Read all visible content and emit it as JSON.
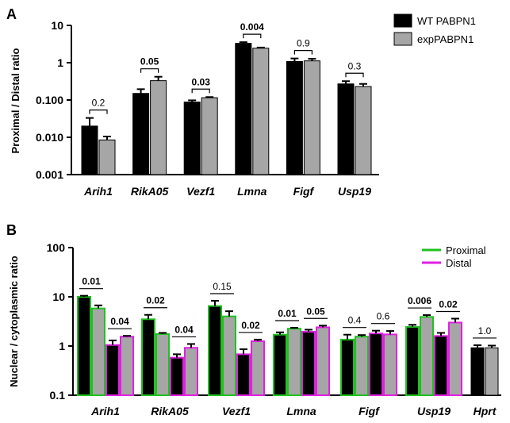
{
  "colors": {
    "wt": "#000000",
    "exp": "#a6a6a6",
    "proximal_outline": "#1fc21f",
    "distal_outline": "#e020e0"
  },
  "chart_data": [
    {
      "panel": "A",
      "type": "bar",
      "scale": "log",
      "ylabel": "Proximal / Distal  ratio",
      "ylim": [
        0.001,
        10
      ],
      "yticks": [
        "0.001",
        "0.010",
        "0.100",
        "1",
        "10"
      ],
      "legend_position": "top-right",
      "categories": [
        "Arih1",
        "RikA05",
        "Vezf1",
        "Lmna",
        "Figf",
        "Usp19"
      ],
      "series": [
        {
          "name": "WT PABPN1",
          "values": [
            0.02,
            0.15,
            0.088,
            3.3,
            1.08,
            0.27
          ],
          "errors": [
            0.013,
            0.045,
            0.01,
            0.25,
            0.22,
            0.05
          ]
        },
        {
          "name": "expPABPN1",
          "values": [
            0.0085,
            0.33,
            0.115,
            2.45,
            1.12,
            0.23
          ],
          "errors": [
            0.002,
            0.09,
            0.005,
            0.1,
            0.15,
            0.04
          ]
        }
      ],
      "pvalues": [
        {
          "label": "0.2",
          "bold": false
        },
        {
          "label": "0.05",
          "bold": true
        },
        {
          "label": "0.03",
          "bold": true
        },
        {
          "label": "0.004",
          "bold": true
        },
        {
          "label": "0.9",
          "bold": false
        },
        {
          "label": "0.3",
          "bold": false
        }
      ]
    },
    {
      "panel": "B",
      "type": "bar",
      "scale": "log",
      "ylabel": "Nuclear / cytoplasmic ratio",
      "ylim": [
        0.1,
        100
      ],
      "yticks": [
        "0.1",
        "1",
        "10",
        "100"
      ],
      "legend_position": "top-right",
      "legend": [
        "Proximal",
        "Distal"
      ],
      "categories": [
        "Arih1",
        "RikA05",
        "Vezf1",
        "Lmna",
        "Figf",
        "Usp19",
        "Hprt"
      ],
      "groups": [
        {
          "category": "Arih1",
          "bars": [
            {
              "fill": "wt",
              "outline": "proximal",
              "value": 10.0,
              "err": 0.5
            },
            {
              "fill": "exp",
              "outline": "proximal",
              "value": 5.8,
              "err": 0.9
            },
            {
              "fill": "wt",
              "outline": "distal",
              "value": 1.05,
              "err": 0.25
            },
            {
              "fill": "exp",
              "outline": "distal",
              "value": 1.55,
              "err": 0.06
            }
          ],
          "pvalues": [
            {
              "label": "0.01",
              "bold": true
            },
            {
              "label": "0.04",
              "bold": true
            }
          ]
        },
        {
          "category": "RikA05",
          "bars": [
            {
              "fill": "wt",
              "outline": "proximal",
              "value": 3.5,
              "err": 0.8
            },
            {
              "fill": "exp",
              "outline": "proximal",
              "value": 1.75,
              "err": 0.1
            },
            {
              "fill": "wt",
              "outline": "distal",
              "value": 0.58,
              "err": 0.1
            },
            {
              "fill": "exp",
              "outline": "distal",
              "value": 0.92,
              "err": 0.18
            }
          ],
          "pvalues": [
            {
              "label": "0.02",
              "bold": true
            },
            {
              "label": "0.04",
              "bold": true
            }
          ]
        },
        {
          "category": "Vezf1",
          "bars": [
            {
              "fill": "wt",
              "outline": "proximal",
              "value": 6.5,
              "err": 1.8
            },
            {
              "fill": "exp",
              "outline": "proximal",
              "value": 4.0,
              "err": 1.1
            },
            {
              "fill": "wt",
              "outline": "distal",
              "value": 0.68,
              "err": 0.18
            },
            {
              "fill": "exp",
              "outline": "distal",
              "value": 1.25,
              "err": 0.1
            }
          ],
          "pvalues": [
            {
              "label": "0.15",
              "bold": false
            },
            {
              "label": "0.02",
              "bold": true
            }
          ]
        },
        {
          "category": "Lmna",
          "bars": [
            {
              "fill": "wt",
              "outline": "proximal",
              "value": 1.7,
              "err": 0.2
            },
            {
              "fill": "exp",
              "outline": "proximal",
              "value": 2.25,
              "err": 0.1
            },
            {
              "fill": "wt",
              "outline": "distal",
              "value": 1.95,
              "err": 0.2
            },
            {
              "fill": "exp",
              "outline": "distal",
              "value": 2.4,
              "err": 0.2
            }
          ],
          "pvalues": [
            {
              "label": "0.01",
              "bold": true
            },
            {
              "label": "0.05",
              "bold": true
            }
          ]
        },
        {
          "category": "Figf",
          "bars": [
            {
              "fill": "wt",
              "outline": "proximal",
              "value": 1.35,
              "err": 0.35
            },
            {
              "fill": "exp",
              "outline": "proximal",
              "value": 1.55,
              "err": 0.12
            },
            {
              "fill": "wt",
              "outline": "distal",
              "value": 1.8,
              "err": 0.25
            },
            {
              "fill": "exp",
              "outline": "distal",
              "value": 1.72,
              "err": 0.3
            }
          ],
          "pvalues": [
            {
              "label": "0.4",
              "bold": false
            },
            {
              "label": "0.6",
              "bold": false
            }
          ]
        },
        {
          "category": "Usp19",
          "bars": [
            {
              "fill": "wt",
              "outline": "proximal",
              "value": 2.45,
              "err": 0.25
            },
            {
              "fill": "exp",
              "outline": "proximal",
              "value": 3.9,
              "err": 0.35
            },
            {
              "fill": "wt",
              "outline": "distal",
              "value": 1.6,
              "err": 0.25
            },
            {
              "fill": "exp",
              "outline": "distal",
              "value": 3.0,
              "err": 0.6
            }
          ],
          "pvalues": [
            {
              "label": "0.006",
              "bold": true
            },
            {
              "label": "0.02",
              "bold": true
            }
          ]
        },
        {
          "category": "Hprt",
          "bars": [
            {
              "fill": "wt",
              "outline": "none",
              "value": 0.92,
              "err": 0.12
            },
            {
              "fill": "exp",
              "outline": "none",
              "value": 0.92,
              "err": 0.1
            }
          ],
          "pvalues": [
            {
              "label": "1.0",
              "bold": false
            }
          ]
        }
      ]
    }
  ]
}
